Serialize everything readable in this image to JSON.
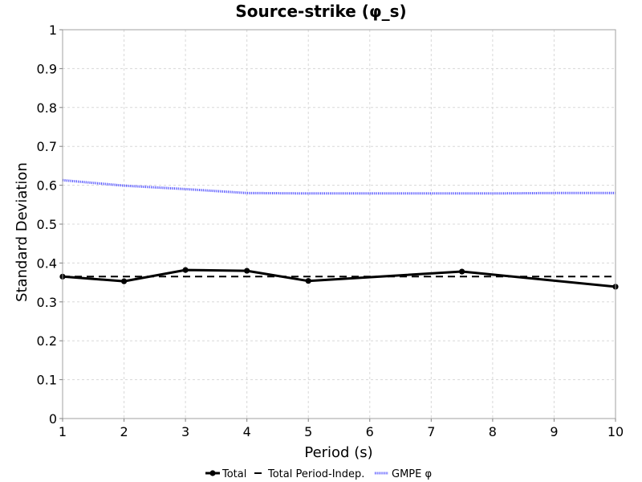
{
  "chart_data": {
    "type": "line",
    "title": "Source-strike (φ_s)",
    "xlabel": "Period (s)",
    "ylabel": "Standard Deviation",
    "xlim": [
      1,
      10
    ],
    "ylim": [
      0,
      1
    ],
    "x_ticks": [
      1,
      2,
      3,
      4,
      5,
      6,
      7,
      8,
      9,
      10
    ],
    "y_ticks": [
      0,
      0.1,
      0.2,
      0.3,
      0.4,
      0.5,
      0.6,
      0.7,
      0.8,
      0.9,
      1
    ],
    "grid": true,
    "legend_position": "bottom-center",
    "series": [
      {
        "name": "Total",
        "color": "#000000",
        "style": "solid-markers",
        "x": [
          1,
          2,
          3,
          4,
          5,
          7.5,
          10
        ],
        "y": [
          0.365,
          0.353,
          0.382,
          0.38,
          0.354,
          0.378,
          0.339
        ]
      },
      {
        "name": "Total Period-Indep.",
        "color": "#000000",
        "style": "dashed",
        "x": [
          1,
          10
        ],
        "y": [
          0.365,
          0.365
        ]
      },
      {
        "name": "GMPE φ",
        "color": "#5555ff",
        "style": "dotted",
        "x": [
          1,
          2,
          3,
          4,
          5,
          6,
          7,
          7.5,
          8,
          9,
          10
        ],
        "y": [
          0.613,
          0.599,
          0.59,
          0.58,
          0.579,
          0.579,
          0.579,
          0.579,
          0.579,
          0.58,
          0.58
        ]
      }
    ]
  }
}
